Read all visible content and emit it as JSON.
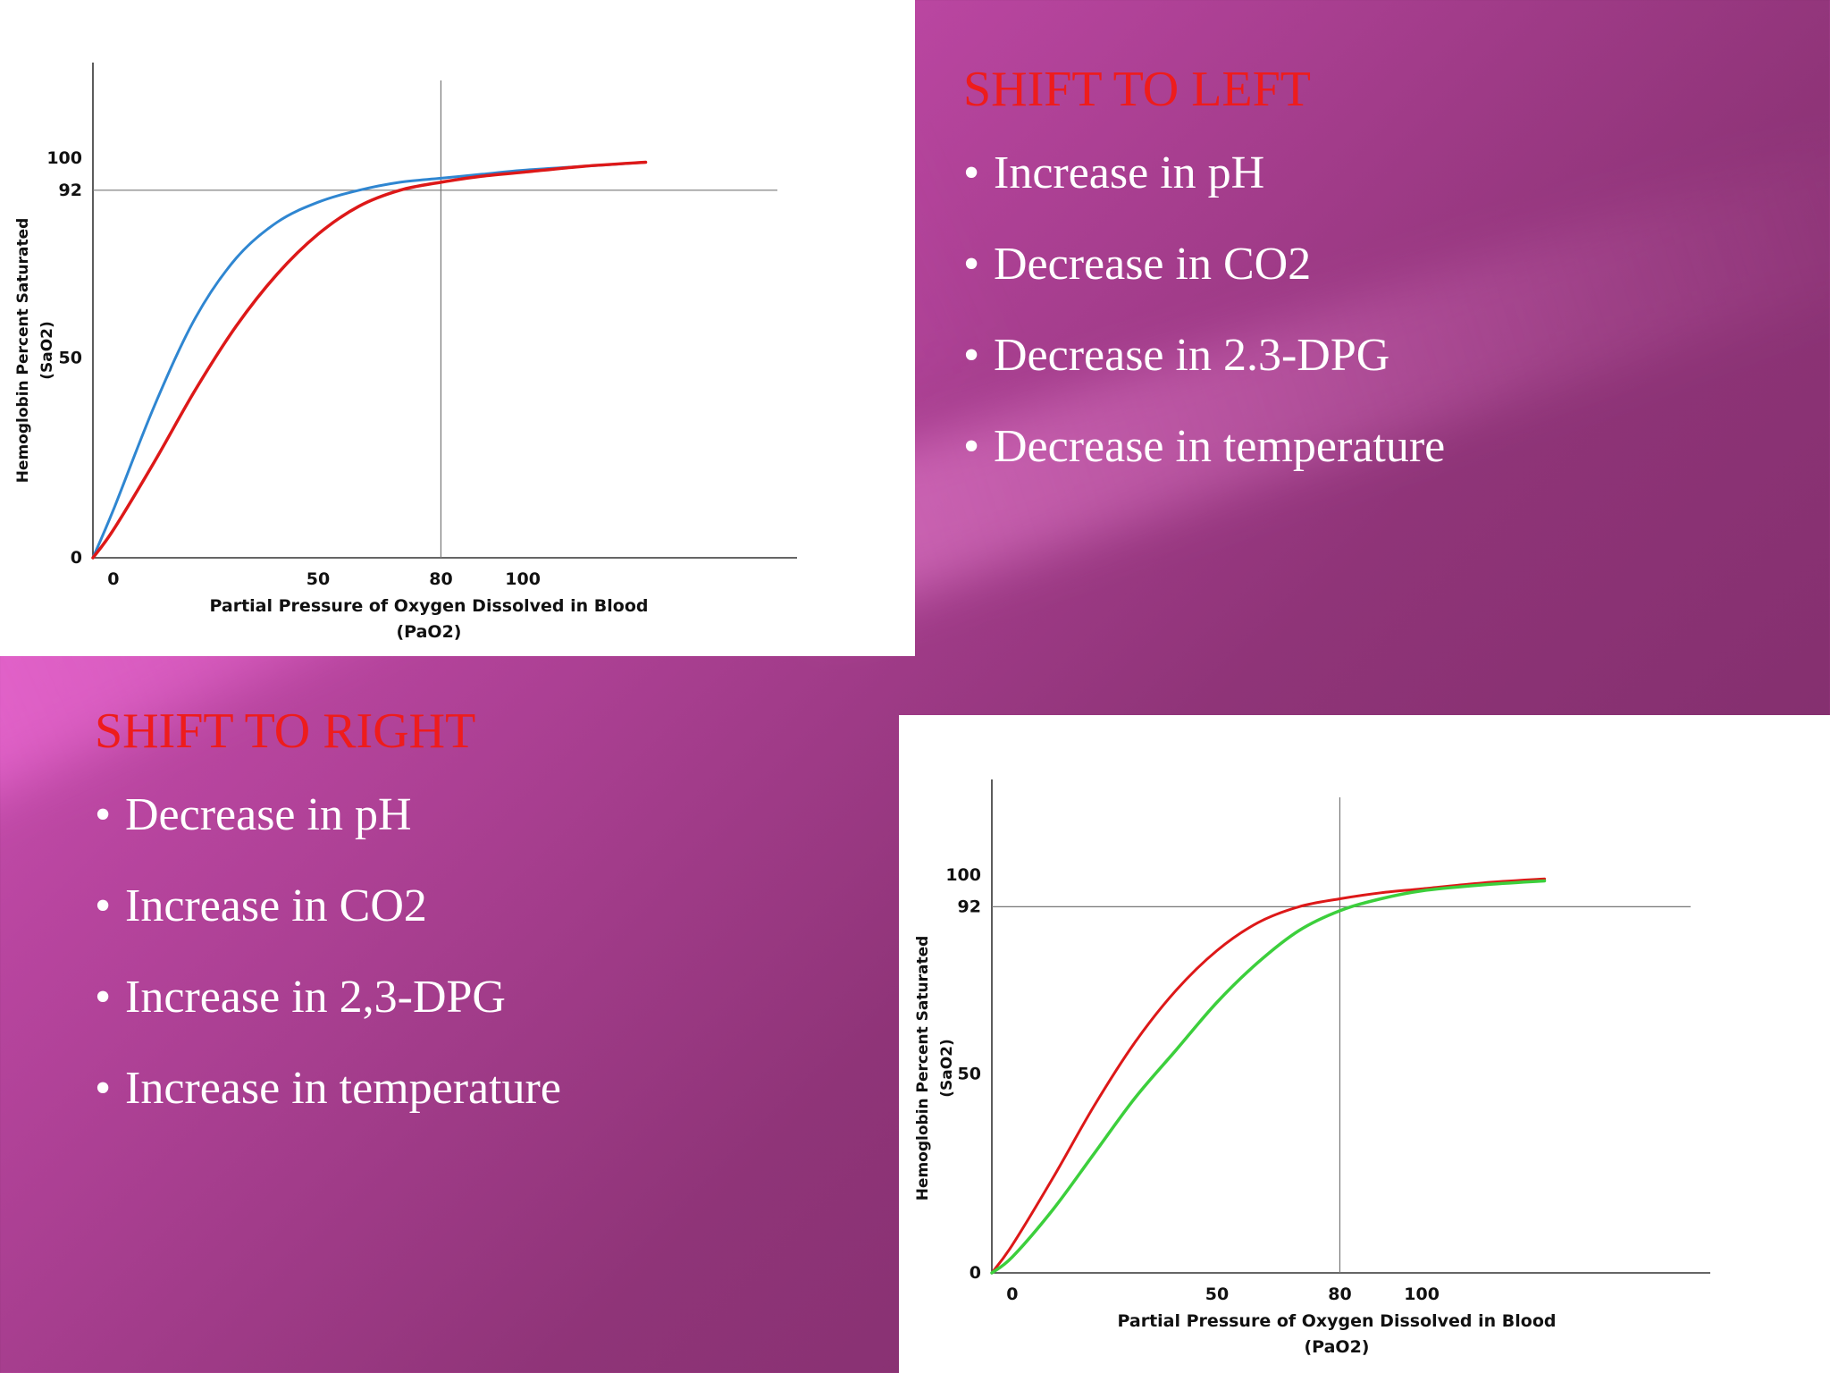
{
  "shift_left": {
    "heading": "SHIFT TO LEFT",
    "bullets": [
      "Increase in pH",
      "Decrease in CO2",
      "Decrease in 2.3-DPG",
      "Decrease in temperature"
    ]
  },
  "shift_right": {
    "heading": "SHIFT TO RIGHT",
    "bullets": [
      "Decrease in pH",
      "Increase in CO2",
      "Increase in 2,3-DPG",
      "Increase in temperature"
    ]
  },
  "chart_data": [
    {
      "type": "line",
      "title": "",
      "xlabel": "Partial Pressure of Oxygen Dissolved in Blood",
      "xlabel_sub": "(PaO2)",
      "ylabel": "Hemoglobin Percent Saturated",
      "ylabel_sub": "(SaO2)",
      "xticks": [
        0,
        50,
        80,
        100
      ],
      "xtick_labels": [
        "0",
        "50",
        "80",
        "100"
      ],
      "yticks": [
        0,
        50,
        92,
        100
      ],
      "ytick_labels": [
        "0",
        "50",
        "92",
        "100"
      ],
      "xlim": [
        -5,
        160
      ],
      "ylim": [
        0,
        115
      ],
      "reference_lines": {
        "x": 80,
        "y": 92
      },
      "grid": false,
      "legend": "none",
      "series": [
        {
          "color": "#2f86d1",
          "x": [
            -5,
            0,
            10,
            20,
            30,
            40,
            50,
            60,
            70,
            80,
            90,
            100,
            115,
            130
          ],
          "y": [
            0,
            12,
            38,
            60,
            75,
            84,
            89,
            92,
            94,
            95,
            96,
            97,
            98,
            99
          ]
        },
        {
          "color": "#dd1818",
          "x": [
            -5,
            0,
            10,
            20,
            30,
            40,
            50,
            60,
            70,
            80,
            90,
            100,
            115,
            130
          ],
          "y": [
            0,
            7,
            24,
            42,
            58,
            71,
            81,
            88,
            92,
            94,
            95.5,
            96.5,
            98,
            99
          ]
        }
      ]
    },
    {
      "type": "line",
      "title": "",
      "xlabel": "Partial Pressure of Oxygen Dissolved in Blood",
      "xlabel_sub": "(PaO2)",
      "ylabel": "Hemoglobin Percent Saturated",
      "ylabel_sub": "(SaO2)",
      "xticks": [
        0,
        50,
        80,
        100
      ],
      "xtick_labels": [
        "0",
        "50",
        "80",
        "100"
      ],
      "yticks": [
        0,
        50,
        92,
        100
      ],
      "ytick_labels": [
        "0",
        "50",
        "92",
        "100"
      ],
      "xlim": [
        -5,
        160
      ],
      "ylim": [
        0,
        115
      ],
      "reference_lines": {
        "x": 80,
        "y": 92
      },
      "grid": false,
      "legend": "none",
      "series": [
        {
          "color": "#dd1818",
          "x": [
            -5,
            0,
            10,
            20,
            30,
            40,
            50,
            60,
            70,
            80,
            90,
            100,
            115,
            130
          ],
          "y": [
            0,
            7,
            24,
            42,
            58,
            71,
            81,
            88,
            92,
            94,
            95.5,
            96.5,
            98,
            99
          ]
        },
        {
          "color": "#3ccf3c",
          "x": [
            -5,
            0,
            10,
            20,
            30,
            40,
            50,
            60,
            70,
            80,
            90,
            100,
            115,
            130
          ],
          "y": [
            0,
            4,
            16,
            30,
            44,
            56,
            68,
            78,
            86,
            91,
            94,
            96,
            97.5,
            98.5
          ]
        }
      ]
    }
  ]
}
